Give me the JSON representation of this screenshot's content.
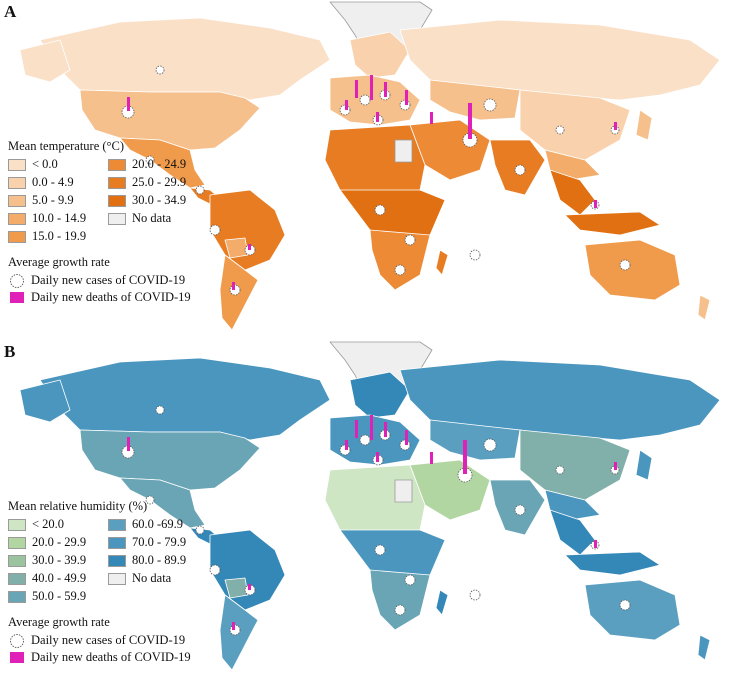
{
  "panels": [
    {
      "letter": "A",
      "legend_title": "Mean temperature (°C)",
      "classes": [
        {
          "label": "< 0.0",
          "color": "#fbe0c8"
        },
        {
          "label": "0.0 - 4.9",
          "color": "#f9d2ad"
        },
        {
          "label": "5.0 - 9.9",
          "color": "#f6c08c"
        },
        {
          "label": "10.0 - 14.9",
          "color": "#f3ac69"
        },
        {
          "label": "15.0 - 19.9",
          "color": "#f09a4b"
        },
        {
          "label": "20.0 - 24.9",
          "color": "#ec8a36"
        },
        {
          "label": "25.0 - 29.9",
          "color": "#e77c22"
        },
        {
          "label": "30.0 - 34.9",
          "color": "#e07011"
        },
        {
          "label": "No data",
          "color": "#efefef"
        }
      ],
      "growth_title": "Average growth rate",
      "cases_label": "Daily new cases of  COVID-19",
      "deaths_label": "Daily new deaths of COVID-19"
    },
    {
      "letter": "B",
      "legend_title": "Mean relative humidity (%)",
      "classes": [
        {
          "label": "< 20.0",
          "color": "#cfe6c4"
        },
        {
          "label": "20.0 - 29.9",
          "color": "#b2d6a2"
        },
        {
          "label": "30.0 - 39.9",
          "color": "#9bc3a0"
        },
        {
          "label": "40.0 - 49.9",
          "color": "#81b0ab"
        },
        {
          "label": "50.0 - 59.9",
          "color": "#6aa5b6"
        },
        {
          "label": "60.0 -69.9",
          "color": "#5a9fc0"
        },
        {
          "label": "70.0 - 79.9",
          "color": "#4a96bf"
        },
        {
          "label": "80.0 - 89.9",
          "color": "#3488b8"
        },
        {
          "label": "No data",
          "color": "#efefef"
        }
      ],
      "growth_title": "Average growth rate",
      "cases_label": "Daily new cases of  COVID-19",
      "deaths_label": "Daily new deaths of COVID-19"
    }
  ],
  "colors": {
    "ocean": "#ffffff",
    "deaths_bar": "#e021b8",
    "case_marker_stroke": "#555555",
    "border": "#ffffff"
  }
}
